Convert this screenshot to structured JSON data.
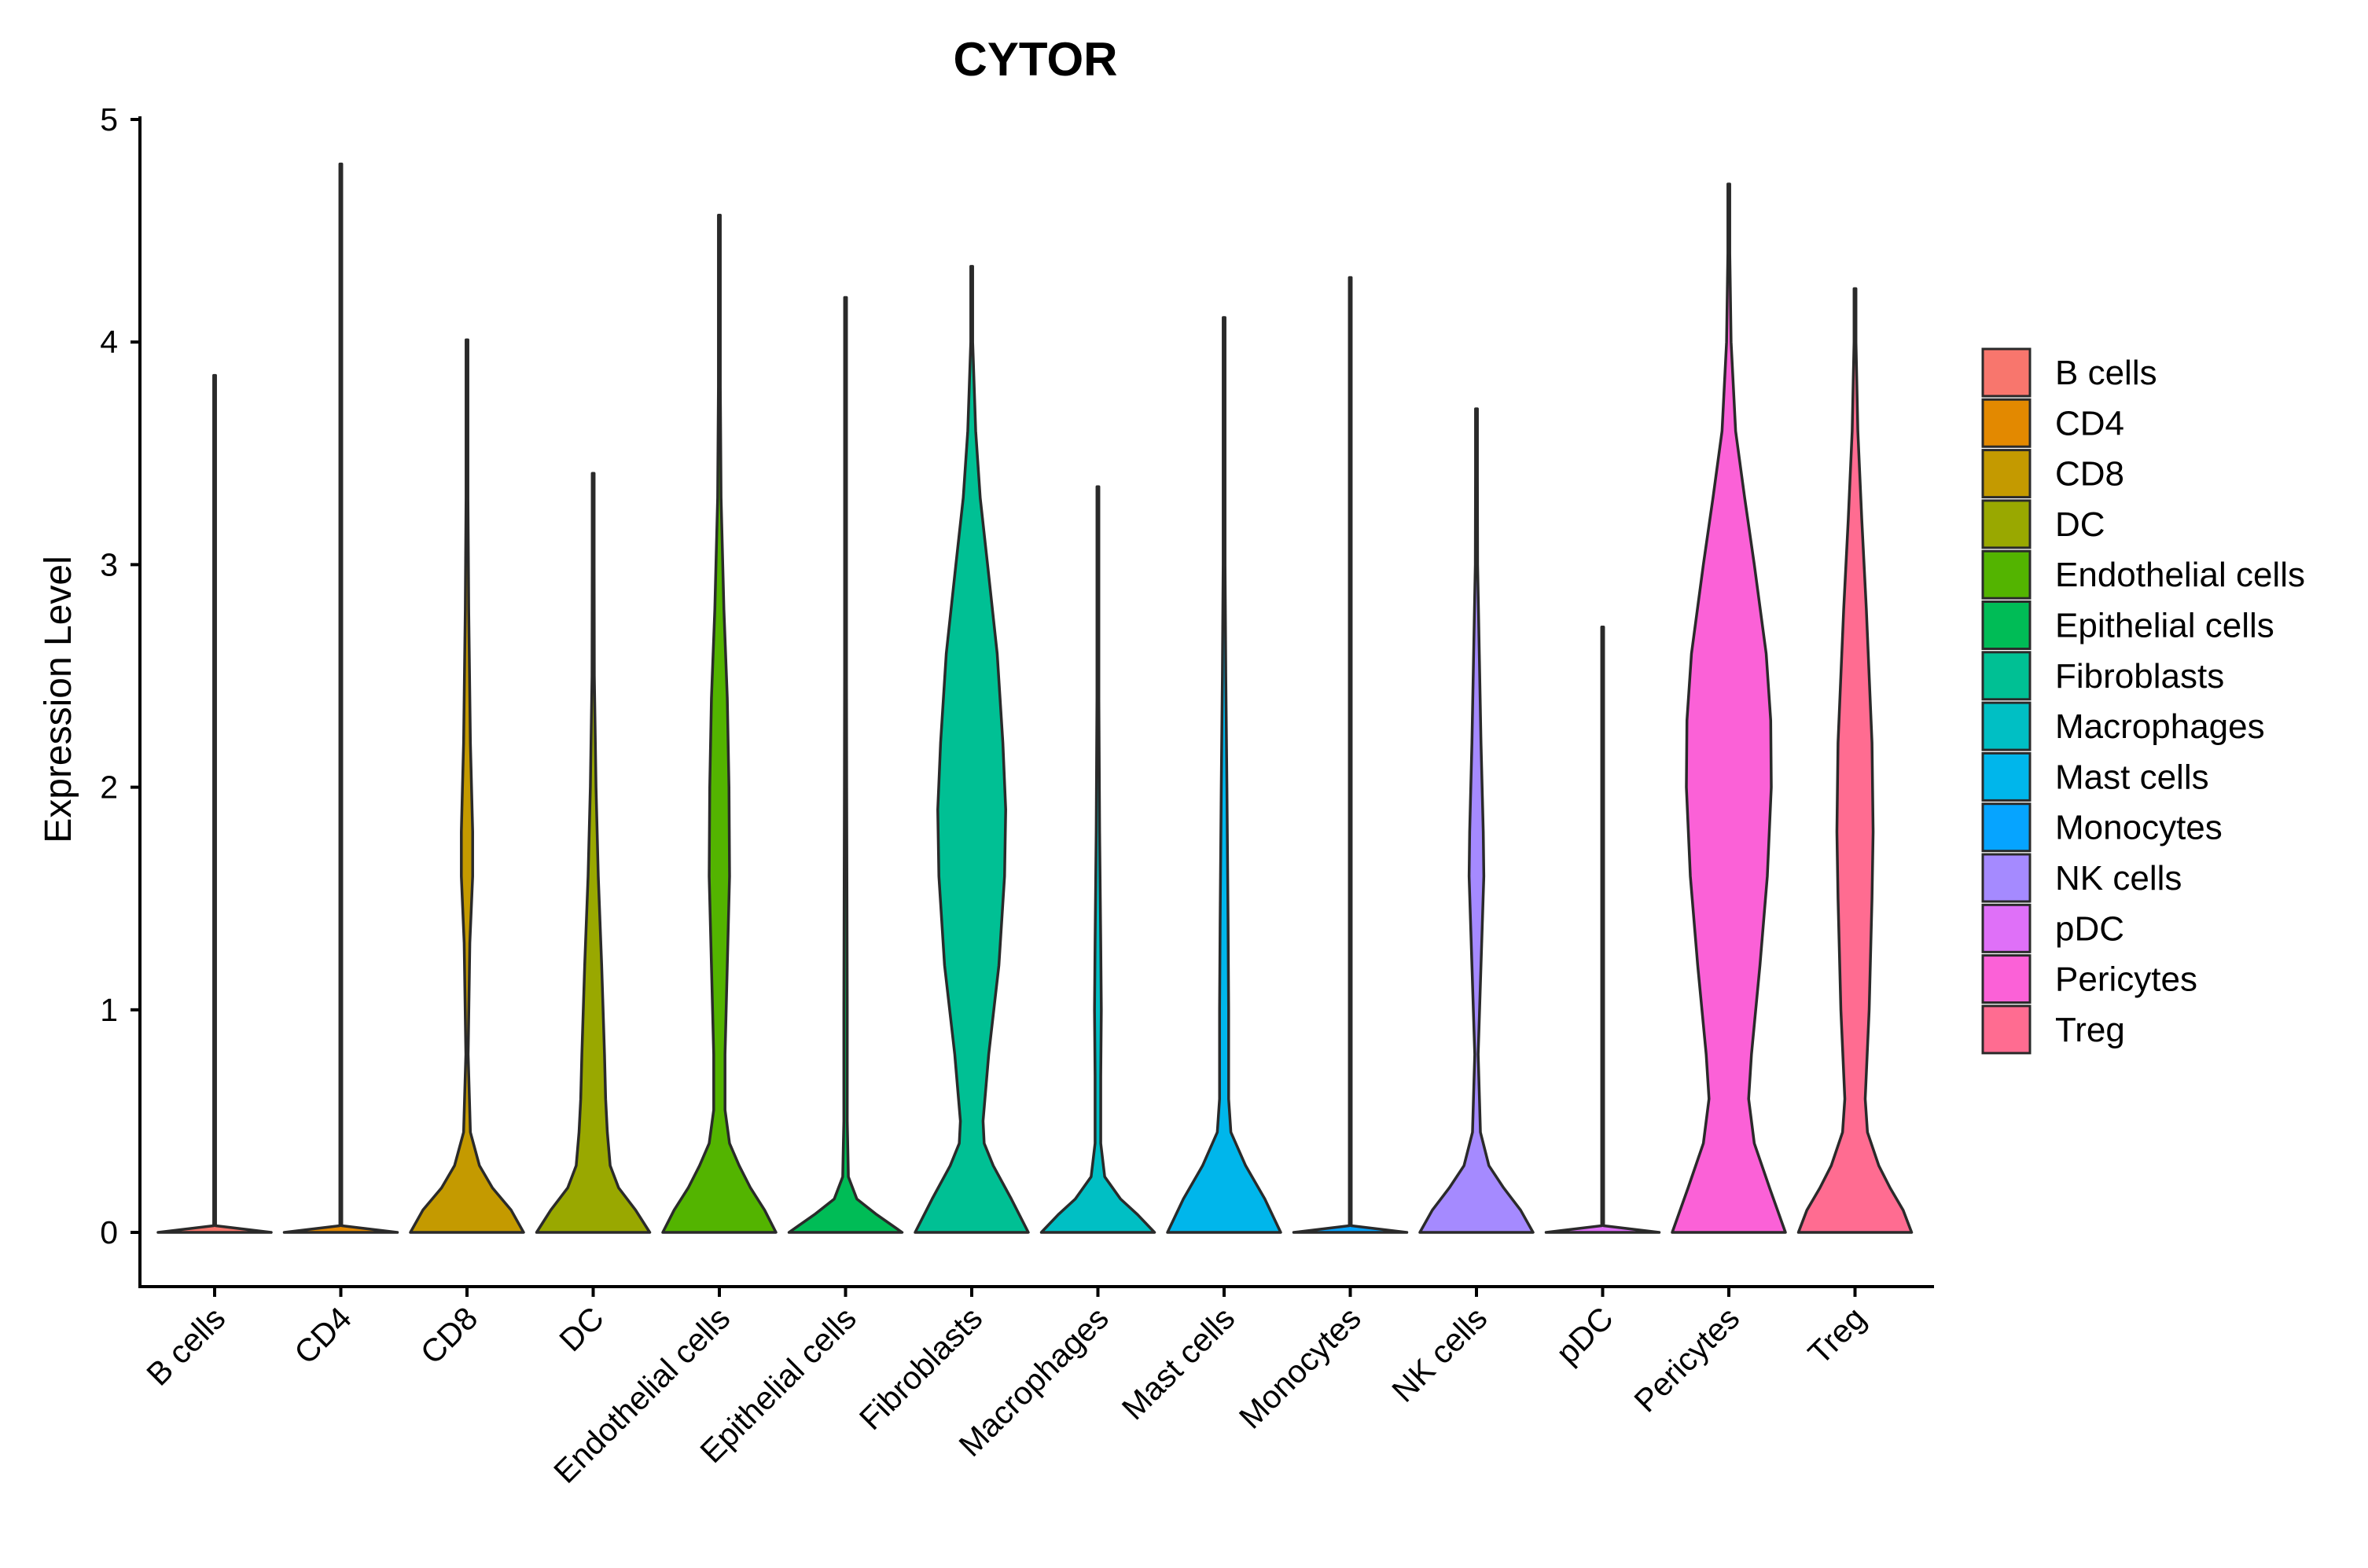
{
  "chart_data": {
    "type": "violin",
    "title": "CYTOR",
    "xlabel": "",
    "ylabel": "Expression Level",
    "ylim": [
      -0.23,
      5.03
    ],
    "yticks": [
      0,
      1,
      2,
      3,
      4,
      5
    ],
    "grid": false,
    "legend_position": "right",
    "categories": [
      "B cells",
      "CD4",
      "CD8",
      "DC",
      "Endothelial cells",
      "Epithelial cells",
      "Fibroblasts",
      "Macrophages",
      "Mast cells",
      "Monocytes",
      "NK cells",
      "pDC",
      "Pericytes",
      "Treg"
    ],
    "series": [
      {
        "name": "B cells",
        "color": "#F8766D",
        "max": 3.85,
        "profile": [
          [
            0,
            1.0
          ],
          [
            0.03,
            0.0
          ]
        ]
      },
      {
        "name": "CD4",
        "color": "#E38900",
        "max": 4.8,
        "profile": [
          [
            0,
            1.0
          ],
          [
            0.03,
            0.0
          ]
        ]
      },
      {
        "name": "CD8",
        "color": "#C49A00",
        "max": 4.01,
        "profile": [
          [
            0,
            1.0
          ],
          [
            0.1,
            0.78
          ],
          [
            0.2,
            0.45
          ],
          [
            0.3,
            0.22
          ],
          [
            0.45,
            0.06
          ],
          [
            0.8,
            0.02
          ],
          [
            1.3,
            0.05
          ],
          [
            1.6,
            0.1
          ],
          [
            1.8,
            0.1
          ],
          [
            2.2,
            0.06
          ],
          [
            2.8,
            0.03
          ],
          [
            3.3,
            0.015
          ],
          [
            3.6,
            0.005
          ]
        ]
      },
      {
        "name": "DC",
        "color": "#99A800",
        "max": 3.41,
        "profile": [
          [
            0,
            1.0
          ],
          [
            0.1,
            0.75
          ],
          [
            0.2,
            0.45
          ],
          [
            0.3,
            0.3
          ],
          [
            0.45,
            0.25
          ],
          [
            0.6,
            0.22
          ],
          [
            0.8,
            0.2
          ],
          [
            1.2,
            0.15
          ],
          [
            1.6,
            0.09
          ],
          [
            2.0,
            0.05
          ],
          [
            2.5,
            0.02
          ],
          [
            3.0,
            0.005
          ]
        ]
      },
      {
        "name": "Endothelial cells",
        "color": "#53B400",
        "max": 4.57,
        "profile": [
          [
            0,
            1.0
          ],
          [
            0.1,
            0.8
          ],
          [
            0.2,
            0.55
          ],
          [
            0.3,
            0.35
          ],
          [
            0.4,
            0.18
          ],
          [
            0.55,
            0.1
          ],
          [
            0.8,
            0.1
          ],
          [
            1.2,
            0.14
          ],
          [
            1.6,
            0.18
          ],
          [
            2.0,
            0.17
          ],
          [
            2.4,
            0.14
          ],
          [
            2.8,
            0.08
          ],
          [
            3.3,
            0.03
          ],
          [
            3.8,
            0.01
          ],
          [
            4.2,
            0.004
          ]
        ]
      },
      {
        "name": "Epithelial cells",
        "color": "#00BC56",
        "max": 4.2,
        "profile": [
          [
            0,
            1.0
          ],
          [
            0.08,
            0.55
          ],
          [
            0.15,
            0.2
          ],
          [
            0.25,
            0.05
          ],
          [
            0.5,
            0.03
          ],
          [
            1.0,
            0.03
          ],
          [
            1.5,
            0.025
          ],
          [
            2.0,
            0.02
          ],
          [
            2.5,
            0.012
          ],
          [
            3.0,
            0.006
          ],
          [
            3.5,
            0.003
          ]
        ]
      },
      {
        "name": "Fibroblasts",
        "color": "#00C094",
        "max": 4.34,
        "profile": [
          [
            0,
            1.0
          ],
          [
            0.15,
            0.7
          ],
          [
            0.3,
            0.38
          ],
          [
            0.4,
            0.22
          ],
          [
            0.5,
            0.2
          ],
          [
            0.8,
            0.3
          ],
          [
            1.2,
            0.48
          ],
          [
            1.6,
            0.58
          ],
          [
            1.9,
            0.6
          ],
          [
            2.2,
            0.55
          ],
          [
            2.6,
            0.45
          ],
          [
            3.0,
            0.28
          ],
          [
            3.3,
            0.15
          ],
          [
            3.6,
            0.07
          ],
          [
            4.0,
            0.015
          ]
        ]
      },
      {
        "name": "Macrophages",
        "color": "#00BFC4",
        "max": 3.35,
        "profile": [
          [
            0,
            1.0
          ],
          [
            0.08,
            0.7
          ],
          [
            0.15,
            0.4
          ],
          [
            0.25,
            0.12
          ],
          [
            0.4,
            0.05
          ],
          [
            0.7,
            0.05
          ],
          [
            1.0,
            0.06
          ],
          [
            1.3,
            0.05
          ],
          [
            1.8,
            0.03
          ],
          [
            2.4,
            0.012
          ],
          [
            3.0,
            0.004
          ]
        ]
      },
      {
        "name": "Mast cells",
        "color": "#00B6EB",
        "max": 4.11,
        "profile": [
          [
            0,
            1.0
          ],
          [
            0.15,
            0.72
          ],
          [
            0.3,
            0.38
          ],
          [
            0.45,
            0.12
          ],
          [
            0.6,
            0.08
          ],
          [
            1.0,
            0.08
          ],
          [
            1.4,
            0.07
          ],
          [
            2.0,
            0.05
          ],
          [
            2.5,
            0.03
          ],
          [
            3.0,
            0.015
          ],
          [
            3.5,
            0.005
          ]
        ]
      },
      {
        "name": "Monocytes",
        "color": "#06A4FF",
        "max": 4.29,
        "profile": [
          [
            0,
            1.0
          ],
          [
            0.03,
            0.0
          ]
        ]
      },
      {
        "name": "NK cells",
        "color": "#A58AFF",
        "max": 3.7,
        "profile": [
          [
            0,
            1.0
          ],
          [
            0.1,
            0.78
          ],
          [
            0.2,
            0.48
          ],
          [
            0.3,
            0.22
          ],
          [
            0.45,
            0.07
          ],
          [
            0.8,
            0.03
          ],
          [
            1.2,
            0.08
          ],
          [
            1.6,
            0.13
          ],
          [
            1.8,
            0.12
          ],
          [
            2.2,
            0.08
          ],
          [
            2.6,
            0.05
          ],
          [
            3.0,
            0.02
          ],
          [
            3.4,
            0.005
          ]
        ]
      },
      {
        "name": "pDC",
        "color": "#DF70F8",
        "max": 2.72,
        "profile": [
          [
            0,
            1.0
          ],
          [
            0.03,
            0.0
          ]
        ]
      },
      {
        "name": "Pericytes",
        "color": "#FB61D7",
        "max": 4.71,
        "profile": [
          [
            0,
            1.0
          ],
          [
            0.2,
            0.72
          ],
          [
            0.4,
            0.45
          ],
          [
            0.6,
            0.35
          ],
          [
            0.8,
            0.4
          ],
          [
            1.2,
            0.55
          ],
          [
            1.6,
            0.68
          ],
          [
            2.0,
            0.75
          ],
          [
            2.3,
            0.74
          ],
          [
            2.6,
            0.66
          ],
          [
            3.0,
            0.45
          ],
          [
            3.3,
            0.28
          ],
          [
            3.6,
            0.12
          ],
          [
            4.0,
            0.04
          ],
          [
            4.4,
            0.01
          ]
        ]
      },
      {
        "name": "Treg",
        "color": "#FF6C91",
        "max": 4.24,
        "profile": [
          [
            0,
            1.0
          ],
          [
            0.1,
            0.85
          ],
          [
            0.2,
            0.62
          ],
          [
            0.3,
            0.42
          ],
          [
            0.45,
            0.22
          ],
          [
            0.6,
            0.18
          ],
          [
            1.0,
            0.25
          ],
          [
            1.5,
            0.3
          ],
          [
            1.8,
            0.32
          ],
          [
            2.2,
            0.3
          ],
          [
            2.8,
            0.2
          ],
          [
            3.2,
            0.12
          ],
          [
            3.6,
            0.05
          ],
          [
            4.0,
            0.01
          ]
        ]
      }
    ]
  }
}
